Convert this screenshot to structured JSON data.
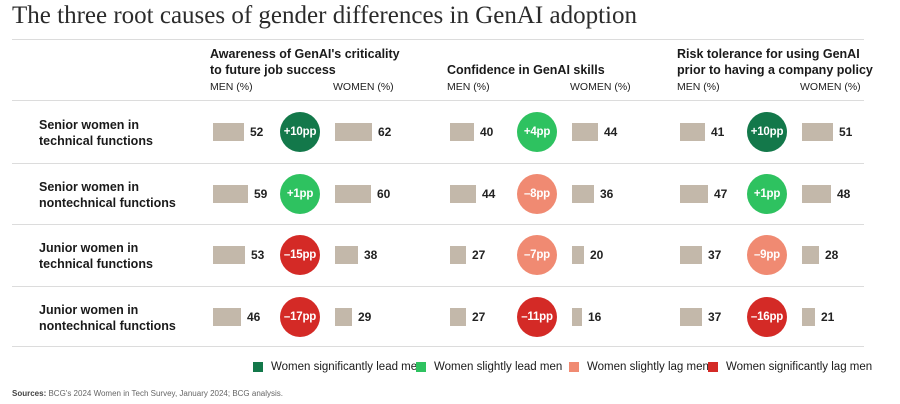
{
  "title": "The three root causes of gender differences in GenAI adoption",
  "source_label": "Sources:",
  "source_text": "BCG's 2024 Women in Tech Survey, January 2024; BCG analysis.",
  "colors": {
    "sig_lead": "#13784a",
    "slight_lead": "#2ec260",
    "slight_lag": "#f08a72",
    "sig_lag": "#d42a26",
    "bar": "#c3b8aa"
  },
  "chart_data": {
    "type": "bar",
    "title": "The three root causes of gender differences in GenAI adoption",
    "unit": "%",
    "groups": [
      {
        "title_line1": "Awareness of GenAI's criticality",
        "title_line2": "to future job success",
        "men_label": "MEN (%)",
        "women_label": "WOMEN (%)"
      },
      {
        "title_line1": "Confidence in GenAI skills",
        "title_line2": "",
        "men_label": "MEN (%)",
        "women_label": "WOMEN (%)"
      },
      {
        "title_line1": "Risk tolerance for using GenAI",
        "title_line2": "prior to having a company policy",
        "men_label": "MEN (%)",
        "women_label": "WOMEN (%)"
      }
    ],
    "rows": [
      {
        "line1": "Senior women in",
        "line2": "technical functions",
        "cells": [
          {
            "men": 52,
            "women": 62,
            "gap": "+10pp",
            "cat": "sig_lead"
          },
          {
            "men": 40,
            "women": 44,
            "gap": "+4pp",
            "cat": "slight_lead"
          },
          {
            "men": 41,
            "women": 51,
            "gap": "+10pp",
            "cat": "sig_lead"
          }
        ]
      },
      {
        "line1": "Senior women in",
        "line2": "nontechnical functions",
        "cells": [
          {
            "men": 59,
            "women": 60,
            "gap": "+1pp",
            "cat": "slight_lead"
          },
          {
            "men": 44,
            "women": 36,
            "gap": "–8pp",
            "cat": "slight_lag"
          },
          {
            "men": 47,
            "women": 48,
            "gap": "+1pp",
            "cat": "slight_lead"
          }
        ]
      },
      {
        "line1": "Junior women in",
        "line2": "technical functions",
        "cells": [
          {
            "men": 53,
            "women": 38,
            "gap": "–15pp",
            "cat": "sig_lag"
          },
          {
            "men": 27,
            "women": 20,
            "gap": "–7pp",
            "cat": "slight_lag"
          },
          {
            "men": 37,
            "women": 28,
            "gap": "–9pp",
            "cat": "slight_lag"
          }
        ]
      },
      {
        "line1": "Junior women in",
        "line2": "nontechnical functions",
        "cells": [
          {
            "men": 46,
            "women": 29,
            "gap": "–17pp",
            "cat": "sig_lag"
          },
          {
            "men": 27,
            "women": 16,
            "gap": "–11pp",
            "cat": "sig_lag"
          },
          {
            "men": 37,
            "women": 21,
            "gap": "–16pp",
            "cat": "sig_lag"
          }
        ]
      }
    ],
    "legend": [
      {
        "cat": "sig_lead",
        "label": "Women significantly lead men"
      },
      {
        "cat": "slight_lead",
        "label": "Women slightly lead men"
      },
      {
        "cat": "slight_lag",
        "label": "Women slightly lag men"
      },
      {
        "cat": "sig_lag",
        "label": "Women significantly lag men"
      }
    ]
  }
}
